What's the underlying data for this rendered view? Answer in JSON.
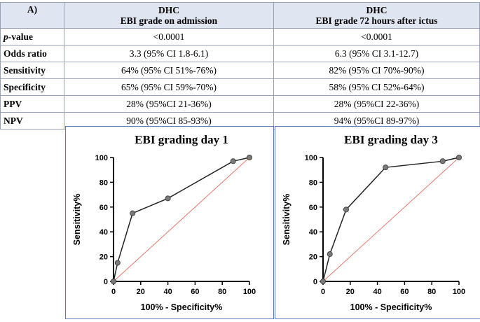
{
  "table": {
    "corner": "A)",
    "headers": [
      {
        "line1": "DHC",
        "line2": "EBI grade on admission"
      },
      {
        "line1": "DHC",
        "line2": "EBI grade 72 hours after ictus"
      }
    ],
    "rows": [
      {
        "label_italic": "p",
        "label_rest": "-value",
        "v1": "<0.0001",
        "v2": "<0.0001"
      },
      {
        "label_italic": "",
        "label_rest": "Odds ratio",
        "v1": "3.3 (95% CI 1.8-6.1)",
        "v2": "6.3 (95% CI 3.1-12.7)"
      },
      {
        "label_italic": "",
        "label_rest": "Sensitivity",
        "v1": "64% (95% CI 51%-76%)",
        "v2": "82% (95% CI 70%-90%)"
      },
      {
        "label_italic": "",
        "label_rest": "Specificity",
        "v1": "65% (95% CI 59%-70%)",
        "v2": "58% (95% CI 52%-64%)"
      },
      {
        "label_italic": "",
        "label_rest": "PPV",
        "v1": "28% (95%CI 21-36%)",
        "v2": "28% (95%CI 22-36%)"
      },
      {
        "label_italic": "",
        "label_rest": "NPV",
        "v1": "90% (95%CI 85-93%)",
        "v2": "94% (95%CI 89-97%)"
      }
    ]
  },
  "chart_data": [
    {
      "type": "line",
      "title": "EBI grading day 1",
      "xlabel": "100% - Specificity%",
      "ylabel": "Sensitivity%",
      "xlim": [
        0,
        100
      ],
      "ylim": [
        0,
        100
      ],
      "xticks": [
        0,
        20,
        40,
        60,
        80,
        100
      ],
      "yticks": [
        0,
        20,
        40,
        60,
        80,
        100
      ],
      "x": [
        0,
        3,
        14,
        40,
        88,
        100
      ],
      "y": [
        0,
        15,
        55,
        67,
        97,
        100
      ],
      "reference_line": {
        "from": [
          0,
          0
        ],
        "to": [
          100,
          100
        ],
        "color": "#e8776a"
      },
      "line_color": "#222222",
      "marker_color": "#7a7a7a"
    },
    {
      "type": "line",
      "title": "EBI grading day 3",
      "xlabel": "100% - Specificity%",
      "ylabel": "Sensitivity%",
      "xlim": [
        0,
        100
      ],
      "ylim": [
        0,
        100
      ],
      "xticks": [
        0,
        20,
        40,
        60,
        80,
        100
      ],
      "yticks": [
        0,
        20,
        40,
        60,
        80,
        100
      ],
      "x": [
        0,
        5,
        17,
        46,
        88,
        100
      ],
      "y": [
        0,
        22,
        58,
        92,
        97,
        100
      ],
      "reference_line": {
        "from": [
          0,
          0
        ],
        "to": [
          100,
          100
        ],
        "color": "#e8776a"
      },
      "line_color": "#222222",
      "marker_color": "#7a7a7a"
    }
  ]
}
